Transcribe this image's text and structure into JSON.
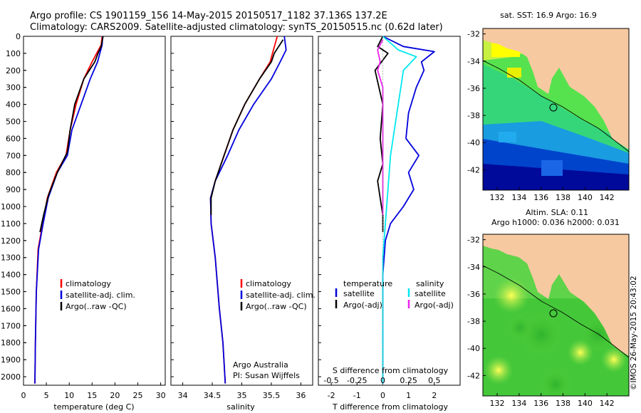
{
  "header": {
    "line1": "Argo profile: CS 1901159_156 14-May-2015 20150517_1182 37.136S 137.2E",
    "line2": "Climatology: CARS2009. Satellite-adjusted climatology: synTS_20150515.nc (0.62d later)"
  },
  "colors": {
    "climatology": "#ff0000",
    "satellite": "#0000dd",
    "argo": "#000000",
    "sal_sat": "#00e8f0",
    "sal_argo": "#ee22ee",
    "land": "#f7c9a0"
  },
  "chart_data": [
    {
      "type": "line",
      "id": "temperature",
      "xlabel": "temperature (deg C)",
      "xlim": [
        0,
        31
      ],
      "ylim": [
        2050,
        0
      ],
      "xticks": [
        0,
        5,
        10,
        15,
        20,
        25,
        30
      ],
      "yticks": [
        0,
        100,
        200,
        300,
        400,
        500,
        600,
        700,
        800,
        900,
        1000,
        1100,
        1200,
        1300,
        1400,
        1500,
        1600,
        1700,
        1800,
        1900,
        2000
      ],
      "legend": [
        "climatology",
        "satellite-adj. clim.",
        "Argo(..raw -QC)"
      ],
      "series": [
        {
          "name": "climatology",
          "color": "#ff0000",
          "points": [
            [
              17.2,
              0
            ],
            [
              17,
              50
            ],
            [
              16,
              100
            ],
            [
              15,
              150
            ],
            [
              13.2,
              250
            ],
            [
              11.5,
              400
            ],
            [
              10.2,
              550
            ],
            [
              9.3,
              700
            ],
            [
              7.2,
              800
            ],
            [
              5.2,
              950
            ],
            [
              4.2,
              1100
            ],
            [
              3.2,
              1250
            ],
            [
              2.8,
              1500
            ],
            [
              2.6,
              1800
            ],
            [
              2.5,
              2040
            ]
          ]
        },
        {
          "name": "satellite-adj. clim.",
          "color": "#0000dd",
          "points": [
            [
              17.3,
              0
            ],
            [
              17.2,
              50
            ],
            [
              16.7,
              100
            ],
            [
              16.2,
              150
            ],
            [
              14.6,
              250
            ],
            [
              12.6,
              400
            ],
            [
              10.6,
              550
            ],
            [
              9.6,
              700
            ],
            [
              7.4,
              800
            ],
            [
              5.4,
              950
            ],
            [
              4.3,
              1100
            ],
            [
              3.3,
              1250
            ],
            [
              2.8,
              1500
            ],
            [
              2.6,
              1800
            ],
            [
              2.5,
              2040
            ]
          ]
        },
        {
          "name": "Argo(..raw -QC)",
          "color": "#000000",
          "points": [
            [
              17.4,
              0
            ],
            [
              17,
              60
            ],
            [
              16.3,
              100
            ],
            [
              15.6,
              150
            ],
            [
              13.2,
              250
            ],
            [
              11.2,
              400
            ],
            [
              10.2,
              550
            ],
            [
              9.6,
              680
            ],
            [
              7.4,
              800
            ],
            [
              5.5,
              930
            ],
            [
              4.4,
              1050
            ],
            [
              3.6,
              1150
            ]
          ]
        }
      ]
    },
    {
      "type": "line",
      "id": "salinity",
      "xlabel": "salinity",
      "xlim": [
        33.8,
        36.2
      ],
      "ylim": [
        2050,
        0
      ],
      "xticks": [
        34,
        34.5,
        35,
        35.5,
        36
      ],
      "legend": [
        "climatology",
        "satellite-adj. clim.",
        "Argo(..raw -QC)"
      ],
      "annotation": [
        "Argo Australia",
        "PI: Susan Wijffels"
      ],
      "series": [
        {
          "name": "climatology",
          "color": "#ff0000",
          "points": [
            [
              35.6,
              0
            ],
            [
              35.52,
              100
            ],
            [
              35.48,
              150
            ],
            [
              35.3,
              250
            ],
            [
              35.05,
              400
            ],
            [
              34.85,
              550
            ],
            [
              34.7,
              700
            ],
            [
              34.55,
              850
            ],
            [
              34.47,
              950
            ],
            [
              34.48,
              1100
            ],
            [
              34.55,
              1300
            ],
            [
              34.62,
              1600
            ],
            [
              34.68,
              1800
            ],
            [
              34.72,
              2040
            ]
          ]
        },
        {
          "name": "satellite-adj. clim.",
          "color": "#0000dd",
          "points": [
            [
              35.72,
              0
            ],
            [
              35.75,
              80
            ],
            [
              35.65,
              150
            ],
            [
              35.5,
              250
            ],
            [
              35.2,
              400
            ],
            [
              34.95,
              550
            ],
            [
              34.76,
              700
            ],
            [
              34.55,
              850
            ],
            [
              34.47,
              950
            ],
            [
              34.48,
              1100
            ],
            [
              34.55,
              1300
            ],
            [
              34.62,
              1600
            ],
            [
              34.68,
              1800
            ],
            [
              34.72,
              2040
            ]
          ]
        },
        {
          "name": "Argo(..raw -QC)",
          "color": "#000000",
          "points": [
            [
              35.7,
              20
            ],
            [
              35.55,
              100
            ],
            [
              35.5,
              150
            ],
            [
              35.3,
              250
            ],
            [
              35.05,
              400
            ],
            [
              34.85,
              550
            ],
            [
              34.7,
              700
            ],
            [
              34.55,
              850
            ],
            [
              34.48,
              950
            ],
            [
              34.48,
              1050
            ]
          ]
        }
      ]
    },
    {
      "type": "line",
      "id": "difference",
      "xlabel": "T difference from climatology",
      "xlabel_top": "S difference from climatology",
      "xlim": [
        -2.5,
        3
      ],
      "ylim": [
        2050,
        0
      ],
      "xticks": [
        -2,
        -1,
        0,
        1,
        2
      ],
      "xticks_top": [
        "-0.5",
        "-0.25",
        "0",
        "0.25",
        "0.5"
      ],
      "legend_temperature": {
        "title": "temperature",
        "items": [
          "satellite",
          "Argo(-adj)"
        ]
      },
      "legend_salinity": {
        "title": "salinity",
        "items": [
          "satellite",
          "Argo(-adj)"
        ]
      },
      "series": [
        {
          "name": "temperature satellite",
          "color": "#0000dd",
          "points": [
            [
              0,
              0
            ],
            [
              0.8,
              60
            ],
            [
              2,
              90
            ],
            [
              1.5,
              150
            ],
            [
              1.6,
              200
            ],
            [
              1.3,
              300
            ],
            [
              1.0,
              450
            ],
            [
              0.9,
              600
            ],
            [
              1.4,
              700
            ],
            [
              1.0,
              800
            ],
            [
              1.2,
              900
            ],
            [
              0.8,
              1000
            ],
            [
              0.3,
              1100
            ],
            [
              0.1,
              1200
            ],
            [
              0,
              1400
            ],
            [
              0,
              2040
            ]
          ]
        },
        {
          "name": "temperature Argo(-adj)",
          "color": "#000000",
          "points": [
            [
              0,
              0
            ],
            [
              -0.2,
              60
            ],
            [
              0.2,
              100
            ],
            [
              -0.3,
              200
            ],
            [
              0,
              400
            ],
            [
              -0.1,
              600
            ],
            [
              0,
              750
            ],
            [
              -0.2,
              850
            ],
            [
              -0.1,
              950
            ],
            [
              0,
              1050
            ],
            [
              0,
              1150
            ]
          ]
        },
        {
          "name": "salinity satellite",
          "color": "#00e8f0",
          "points": [
            [
              0,
              0
            ],
            [
              0.6,
              80
            ],
            [
              1.3,
              120
            ],
            [
              0.8,
              200
            ],
            [
              0.7,
              300
            ],
            [
              0.5,
              500
            ],
            [
              0.3,
              700
            ],
            [
              0.2,
              900
            ],
            [
              0.1,
              1100
            ],
            [
              0,
              1300
            ],
            [
              0,
              2040
            ]
          ]
        },
        {
          "name": "salinity Argo(-adj)",
          "color": "#ee22ee",
          "points": [
            [
              0,
              20
            ],
            [
              -0.2,
              80
            ],
            [
              -0.1,
              150
            ],
            [
              -0.2,
              200
            ],
            [
              0,
              300
            ],
            [
              0,
              500
            ],
            [
              0,
              800
            ],
            [
              0,
              1050
            ]
          ]
        }
      ]
    },
    {
      "type": "heatmap",
      "id": "sst-map",
      "title": "sat. SST: 16.9  Argo: 16.9",
      "xticks": [
        132,
        134,
        136,
        138,
        140,
        142
      ],
      "yticks": [
        -32,
        -34,
        -36,
        -38,
        -40,
        -42
      ],
      "xlim": [
        130.7,
        144
      ],
      "ylim": [
        -43.5,
        -31.6
      ],
      "argo_position": [
        137.2,
        -37.136
      ]
    },
    {
      "type": "heatmap",
      "id": "sla-map",
      "title": "Altim. SLA: 0.11",
      "subtitle": "Argo h1000: 0.036 h2000: 0.031",
      "xticks": [
        132,
        134,
        136,
        138,
        140,
        142
      ],
      "yticks": [
        -32,
        -34,
        -36,
        -38,
        -40,
        -42
      ],
      "xlim": [
        130.7,
        144
      ],
      "ylim": [
        -43.5,
        -31.6
      ],
      "argo_position": [
        137.2,
        -37.136
      ]
    }
  ],
  "credit": "©IMOS 26-May-2015 20:43:02"
}
